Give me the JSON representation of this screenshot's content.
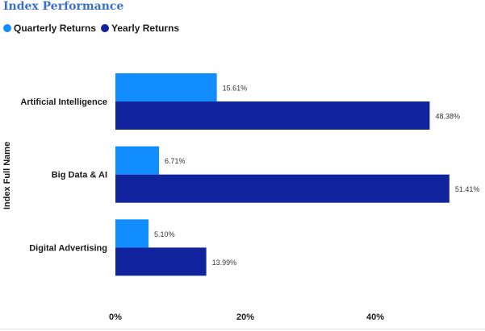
{
  "title": "Index Performance",
  "chart_data": {
    "type": "bar",
    "orientation": "horizontal",
    "categories": [
      "Artificial Intelligence",
      "Big Data & AI",
      "Digital Advertising"
    ],
    "series": [
      {
        "name": "Quarterly Returns",
        "color": "#118dff",
        "values": [
          15.61,
          6.71,
          5.1
        ],
        "labels": [
          "15.61%",
          "6.71%",
          "5.10%"
        ]
      },
      {
        "name": "Yearly Returns",
        "color": "#12239e",
        "values": [
          48.38,
          51.41,
          13.99
        ],
        "labels": [
          "48.38%",
          "51.41%",
          "13.99%"
        ]
      }
    ],
    "ylabel": "Index Full Name",
    "xlim": [
      0,
      60
    ],
    "xticks": [
      0,
      20,
      40
    ],
    "xtick_labels": [
      "0%",
      "20%",
      "40%"
    ],
    "legend": "top-left",
    "grid": false
  }
}
